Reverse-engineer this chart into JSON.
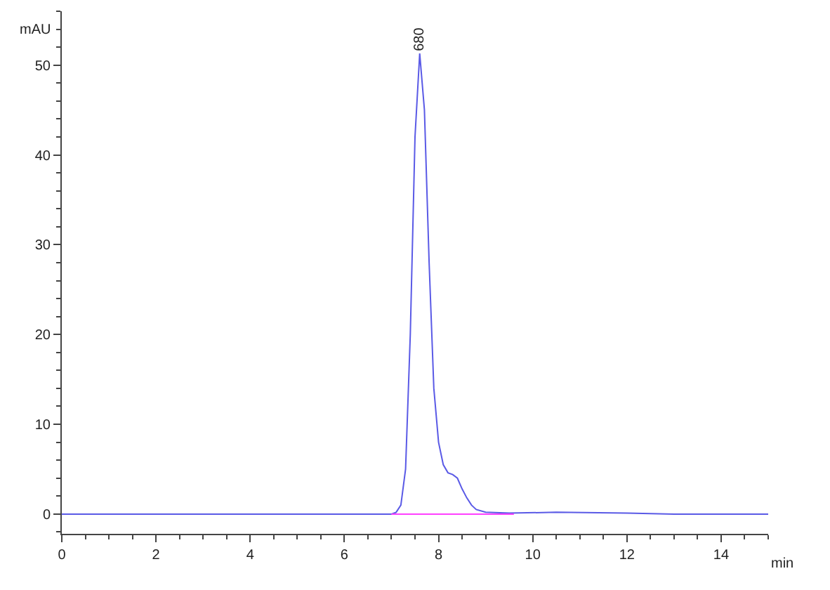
{
  "chart_data": {
    "type": "line",
    "xlabel": "min",
    "ylabel": "mAU",
    "xlim": [
      0,
      15
    ],
    "ylim": [
      -2.2,
      56
    ],
    "xticks": [
      0,
      2,
      4,
      6,
      8,
      10,
      12,
      14
    ],
    "yticks": [
      0,
      10,
      20,
      30,
      40,
      50
    ],
    "marker": "none",
    "line_style": "solid",
    "series": [
      {
        "color": "#5a5ae6",
        "x": [
          0,
          3,
          6,
          6.9,
          7.0,
          7.1,
          7.2,
          7.3,
          7.4,
          7.5,
          7.6,
          7.7,
          7.8,
          7.9,
          8.0,
          8.1,
          8.2,
          8.3,
          8.4,
          8.5,
          8.6,
          8.7,
          8.8,
          9.0,
          9.5,
          10.5,
          12,
          13,
          15
        ],
        "values": [
          0,
          0,
          0,
          0,
          0,
          0.2,
          1,
          5,
          20,
          42,
          51.3,
          45,
          28,
          14,
          8,
          5.5,
          4.6,
          4.4,
          4.0,
          2.8,
          1.8,
          1.0,
          0.5,
          0.2,
          0.1,
          0.2,
          0.1,
          0,
          0
        ]
      },
      {
        "color": "#ff40ff",
        "x": [
          7.0,
          9.6
        ],
        "values": [
          0,
          0
        ]
      }
    ],
    "annotations": [
      {
        "text": "680",
        "x": 7.6,
        "y": 51.3
      }
    ]
  }
}
